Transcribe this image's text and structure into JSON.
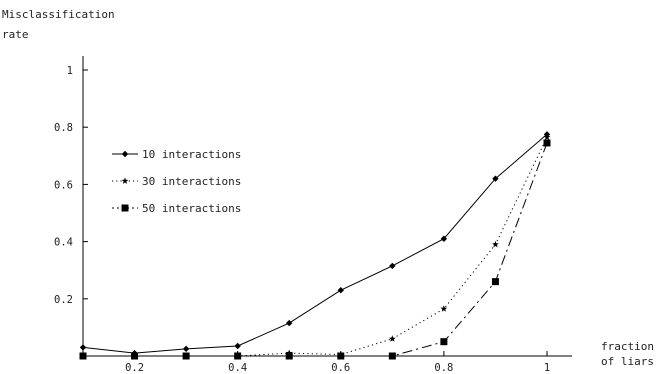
{
  "chart_data": {
    "type": "line",
    "ylabel_line1": "Misclassification",
    "ylabel_line2": "rate",
    "xlabel_line1": "fraction",
    "xlabel_line2": "of liars",
    "x": [
      0.1,
      0.2,
      0.3,
      0.4,
      0.5,
      0.6,
      0.7,
      0.8,
      0.9,
      1.0
    ],
    "xlim": [
      0.1,
      1.05
    ],
    "ylim": [
      0,
      1.05
    ],
    "xticks": [
      "0.2",
      "0.4",
      "0.6",
      "0.8",
      "1"
    ],
    "xtick_values": [
      0.2,
      0.4,
      0.6,
      0.8,
      1.0
    ],
    "yticks": [
      "0.2",
      "0.4",
      "0.6",
      "0.8",
      "1"
    ],
    "ytick_values": [
      0.2,
      0.4,
      0.6,
      0.8,
      1.0
    ],
    "legend_position": "upper-left",
    "series": [
      {
        "name": "10 interactions",
        "marker": "diamond",
        "line_style": "solid",
        "values": [
          0.03,
          0.01,
          0.025,
          0.035,
          0.115,
          0.23,
          0.315,
          0.41,
          0.62,
          0.775
        ]
      },
      {
        "name": "30 interactions",
        "marker": "star",
        "line_style": "dotted",
        "values": [
          0.0,
          0.0,
          0.0,
          0.0,
          0.01,
          0.005,
          0.06,
          0.165,
          0.39,
          0.765
        ]
      },
      {
        "name": "50 interactions",
        "marker": "square",
        "line_style": "dashdot",
        "values": [
          0.0,
          0.0,
          0.0,
          0.0,
          0.0,
          0.0,
          0.0,
          0.05,
          0.26,
          0.745
        ]
      }
    ]
  }
}
